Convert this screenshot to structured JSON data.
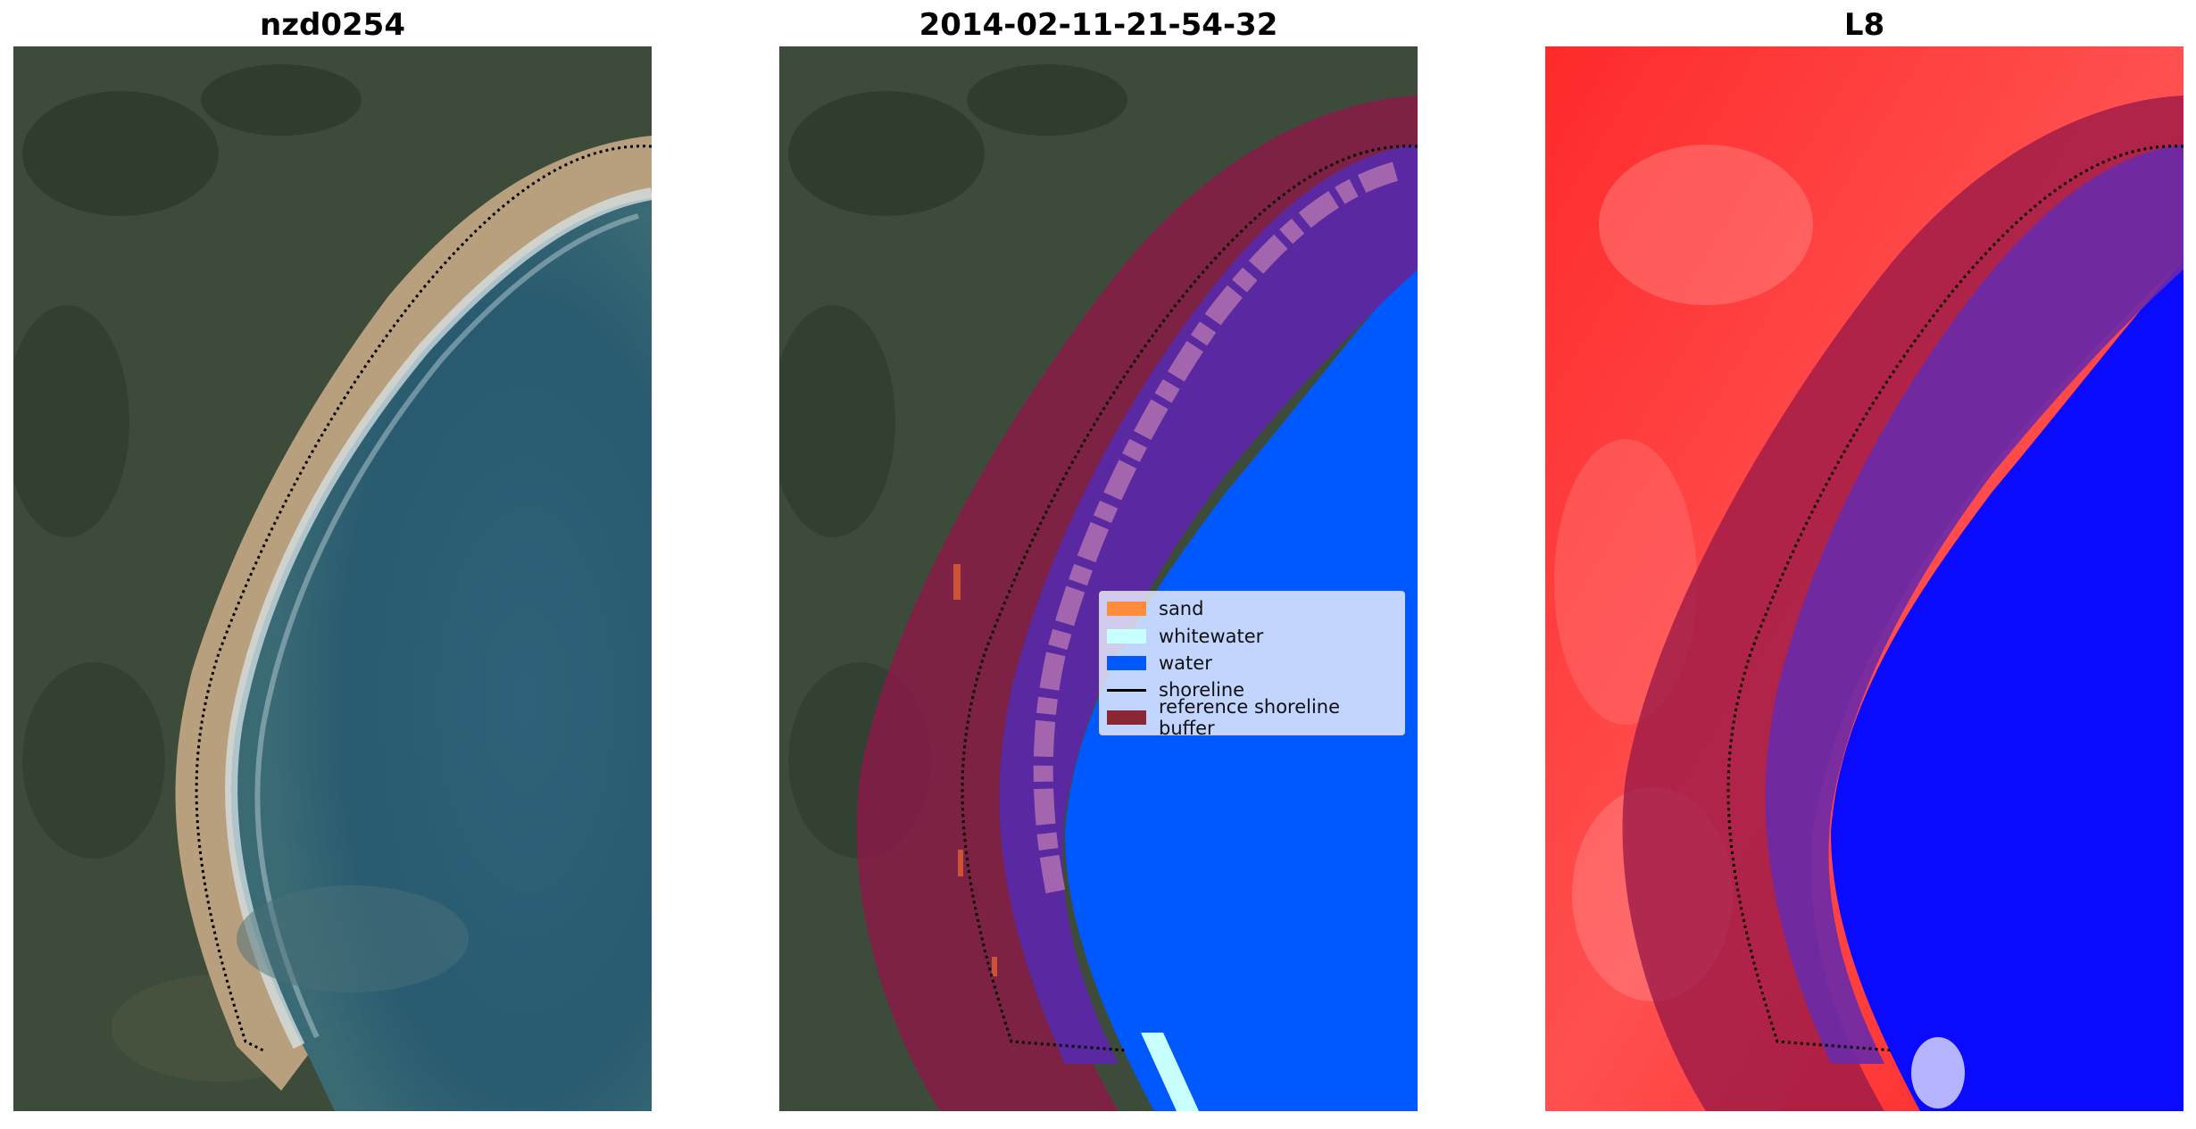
{
  "panels": [
    {
      "title": "nzd0254"
    },
    {
      "title": "2014-02-11-21-54-32"
    },
    {
      "title": "L8"
    }
  ],
  "legend": {
    "items": [
      {
        "label": "sand",
        "type": "patch",
        "color": "#ff8c3c"
      },
      {
        "label": "whitewater",
        "type": "patch",
        "color": "#c8ffff"
      },
      {
        "label": "water",
        "type": "patch",
        "color": "#0059ff"
      },
      {
        "label": "shoreline",
        "type": "line",
        "color": "#000000"
      },
      {
        "label": "reference shoreline buffer",
        "type": "patch",
        "color": "#8b2635"
      }
    ]
  },
  "colors": {
    "land": "#3b4a38",
    "sea_rgb": "#2a5a72",
    "sand": "#c8a880",
    "class_water": "#0059ff",
    "buffer": "#8b2440",
    "mndwi_land": "#ff2020",
    "mndwi_water": "#0a0aff"
  }
}
